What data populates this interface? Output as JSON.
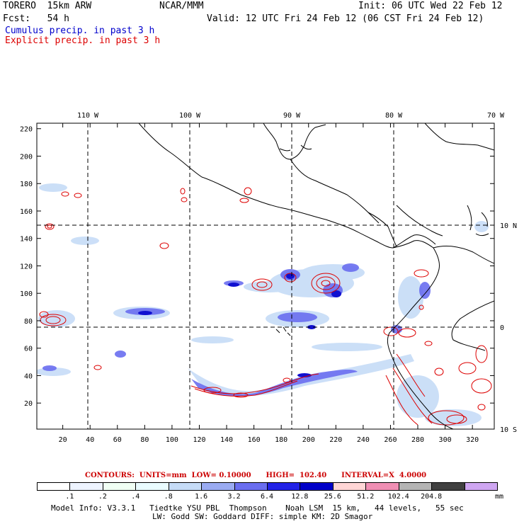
{
  "header": {
    "model": "TORERO  15km ARW",
    "org": "NCAR/MMM",
    "init": "Init: 06 UTC Wed 22 Feb 12",
    "fcst": "Fcst:   54 h",
    "valid": "Valid: 12 UTC Fri 24 Feb 12 (06 CST Fri 24 Feb 12)",
    "field1": "Cumulus precip. in past 3 h",
    "field2": "Explicit precip. in past 3 h"
  },
  "colors": {
    "field1": "#0000cc",
    "field2": "#dd0000",
    "coast": "#000000",
    "grid": "#000000"
  },
  "axes": {
    "lon_labels": [
      "110 W",
      "100 W",
      "90 W",
      "80 W",
      "70 W"
    ],
    "lat_labels": [
      "10 N",
      "0",
      "10 S"
    ],
    "x_ticks": [
      "20",
      "40",
      "60",
      "80",
      "100",
      "120",
      "140",
      "160",
      "180",
      "200",
      "220",
      "240",
      "260",
      "280",
      "300",
      "320"
    ],
    "y_ticks": [
      "220",
      "200",
      "180",
      "160",
      "140",
      "120",
      "100",
      "80",
      "60",
      "40",
      "20"
    ]
  },
  "contours_info": "CONTOURS:  UNITS=mm  LOW= 0.10000      HIGH=  102.40      INTERVAL=X  4.0000",
  "colorbar": {
    "labels": [
      ".1",
      ".2",
      ".4",
      ".8",
      "1.6",
      "3.2",
      "6.4",
      "12.8",
      "25.6",
      "51.2",
      "102.4",
      "204.8"
    ],
    "unit": "mm",
    "colors": [
      "#ffffff",
      "#eef4ff",
      "#f0fff4",
      "#eafcff",
      "#c6dcf7",
      "#9aabf2",
      "#6a6ef0",
      "#2222e6",
      "#0000c8",
      "#ffd6d6",
      "#f08fb4",
      "#b4b4b4",
      "#404040",
      "#cfa6f2"
    ]
  },
  "footer": {
    "line1": "Model Info: V3.3.1   Tiedtke YSU PBL  Thompson    Noah LSM  15 km,   44 levels,   55 sec",
    "line2": "LW: Godd SW: Goddard DIFF: simple KM: 2D Smagor"
  }
}
